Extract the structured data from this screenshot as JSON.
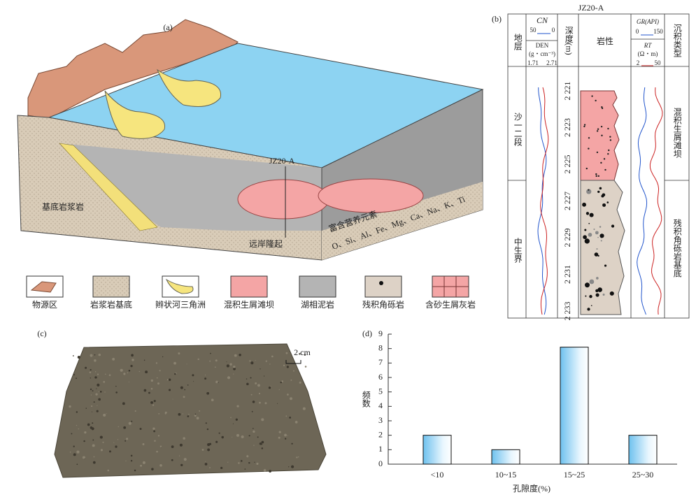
{
  "panel_a": {
    "label": "(a)",
    "basement": "基底岩浆岩",
    "well": "JZ20-A",
    "nutrients": "富含营养元素",
    "elements": "O、Si、Al、Fe、Mg、Ca、Na、K、Ti",
    "uplift": "远岸隆起"
  },
  "legend": [
    "物源区",
    "岩浆岩基底",
    "辫状河三角洲",
    "混积生屑滩坝",
    "湖相泥岩",
    "残积角砾岩",
    "含砂生屑灰岩"
  ],
  "panel_b": {
    "label": "(b)",
    "well": "JZ20-A",
    "headers": {
      "strata": "地层",
      "cn": "CN",
      "cn_range": [
        "50",
        "0"
      ],
      "den": "DEN",
      "den_unit": "(g・cm⁻³)",
      "den_range": [
        "1.71",
        "2.71"
      ],
      "depth": "深度(m)",
      "lithology": "岩性",
      "gr": "GR(API)",
      "gr_range": [
        "0",
        "150"
      ],
      "rt": "RT",
      "rt_unit": "(Ω・m)",
      "rt_range": [
        "2",
        "50"
      ],
      "type": "沉积类型"
    },
    "strata": [
      "沙一二段",
      "中生界"
    ],
    "depths": [
      "2 221",
      "2 223",
      "2 225",
      "2 227",
      "2 229",
      "2 231",
      "2 233"
    ],
    "types": [
      "混积生屑滩坝",
      "残积角砾岩基底"
    ]
  },
  "panel_c": {
    "label": "(c)",
    "scale": "2 cm"
  },
  "chart_data": {
    "type": "bar",
    "label": "(d)",
    "categories": [
      "<10",
      "10~15",
      "15~25",
      "25~30"
    ],
    "values": [
      2,
      1,
      8.1,
      2
    ],
    "color": "#6ec1ee",
    "ylim": [
      0,
      9
    ],
    "yticks": [
      0,
      1,
      2,
      3,
      4,
      5,
      6,
      7,
      8,
      9
    ],
    "y_label": "频数",
    "x_label": "孔隙度(%)"
  }
}
